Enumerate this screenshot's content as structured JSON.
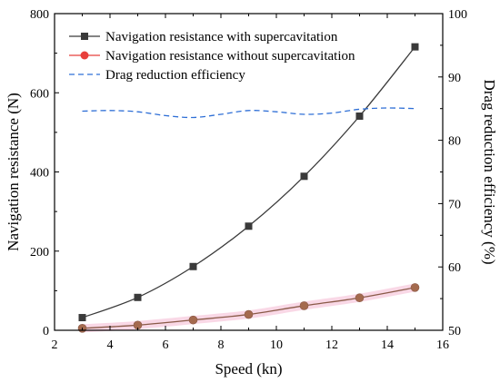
{
  "chart_data": {
    "type": "line",
    "xlabel": "Speed (kn)",
    "ylabel": "Navigation resistance (N)",
    "y2label": "Drag reduction efficiency (%)",
    "xlim": [
      2,
      16
    ],
    "ylim": [
      0,
      800
    ],
    "y2lim": [
      50,
      100
    ],
    "xticks": [
      2,
      4,
      6,
      8,
      10,
      12,
      14,
      16
    ],
    "yticks": [
      0,
      200,
      400,
      600,
      800
    ],
    "y2ticks": [
      50,
      60,
      70,
      80,
      90,
      100
    ],
    "legend_position": "top-left",
    "grid": false,
    "series": [
      {
        "name": "Navigation resistance with supercavitation",
        "axis": "left",
        "color": "#3a3a3a",
        "marker": "square",
        "x": [
          3,
          5,
          7,
          9,
          11,
          13,
          15
        ],
        "y": [
          32,
          83,
          161,
          263,
          389,
          541,
          716
        ]
      },
      {
        "name": "Navigation resistance without supercavitation",
        "axis": "left",
        "color": "#e8403c",
        "marker": "circle",
        "x": [
          3,
          5,
          7,
          9,
          11,
          13,
          15
        ],
        "y": [
          5,
          13,
          26,
          40,
          62,
          82,
          108
        ]
      },
      {
        "name": "Drag reduction efficiency",
        "axis": "right",
        "color": "#2f6fd6",
        "marker": "none",
        "dash": true,
        "x": [
          3,
          4,
          5,
          6,
          7,
          8,
          9,
          10,
          11,
          12,
          13,
          14,
          15
        ],
        "y": [
          84.6,
          84.7,
          84.5,
          83.9,
          83.6,
          84.1,
          84.7,
          84.5,
          84.1,
          84.3,
          84.9,
          85.1,
          85.0
        ]
      }
    ]
  }
}
